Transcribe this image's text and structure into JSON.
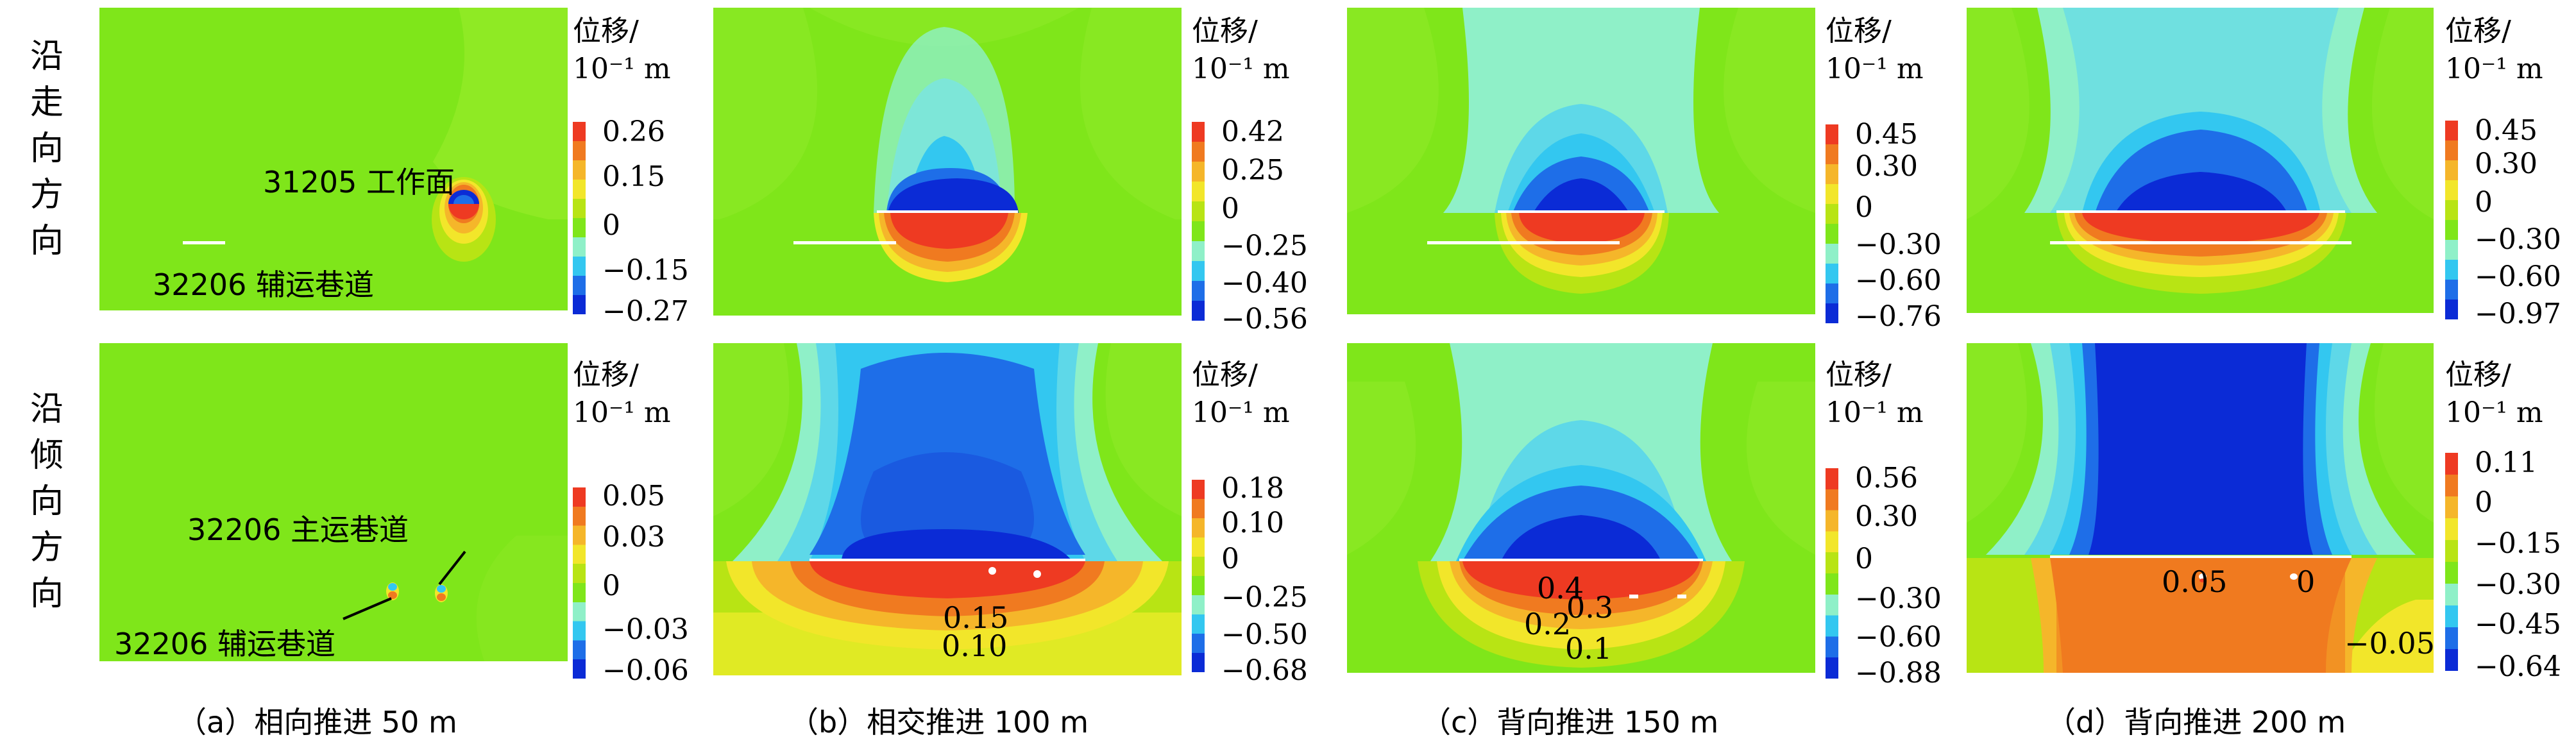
{
  "row_labels": [
    "沿走向方向",
    "沿倾向方向"
  ],
  "captions": [
    "（a）相向推进 50 m",
    "（b）相交推进 100 m",
    "（c）背向推进 150 m",
    "（d）背向推进 200 m"
  ],
  "legend_title": "位移/",
  "legend_unit": "10⁻¹ m",
  "colorscale": [
    "#0b2bd6",
    "#1e6ee8",
    "#33c7f0",
    "#8ff0c8",
    "#7fe61a",
    "#b8e414",
    "#f2e62a",
    "#f5b62a",
    "#f07a20",
    "#ee3a22"
  ],
  "annotations": {
    "a_top_face": "31205 工作面",
    "a_top_road": "32206 辅运巷道",
    "a_bottom_main": "32206 主运巷道",
    "a_bottom_aux": "32206 辅运巷道"
  },
  "chart_data": [
    {
      "type": "heatmap",
      "row": "沿走向方向",
      "panel": "(a)",
      "colorbar_ticks": [
        "0.26",
        "0.15",
        "0",
        "−0.15",
        "−0.27"
      ],
      "contour_labels": []
    },
    {
      "type": "heatmap",
      "row": "沿走向方向",
      "panel": "(b)",
      "colorbar_ticks": [
        "0.42",
        "0.25",
        "0",
        "−0.25",
        "−0.40",
        "−0.56"
      ],
      "contour_labels": []
    },
    {
      "type": "heatmap",
      "row": "沿走向方向",
      "panel": "(c)",
      "colorbar_ticks": [
        "0.45",
        "0.30",
        "0",
        "−0.30",
        "−0.60",
        "−0.76"
      ],
      "contour_labels": []
    },
    {
      "type": "heatmap",
      "row": "沿走向方向",
      "panel": "(d)",
      "colorbar_ticks": [
        "0.45",
        "0.30",
        "0",
        "−0.30",
        "−0.60",
        "−0.97"
      ],
      "contour_labels": []
    },
    {
      "type": "heatmap",
      "row": "沿倾向方向",
      "panel": "(a)",
      "colorbar_ticks": [
        "0.05",
        "0.03",
        "0",
        "−0.03",
        "−0.06"
      ],
      "contour_labels": []
    },
    {
      "type": "heatmap",
      "row": "沿倾向方向",
      "panel": "(b)",
      "colorbar_ticks": [
        "0.18",
        "0.10",
        "0",
        "−0.25",
        "−0.50",
        "−0.68"
      ],
      "contour_labels": [
        "0.15",
        "0.10"
      ]
    },
    {
      "type": "heatmap",
      "row": "沿倾向方向",
      "panel": "(c)",
      "colorbar_ticks": [
        "0.56",
        "0.30",
        "0",
        "−0.30",
        "−0.60",
        "−0.88"
      ],
      "contour_labels": [
        "0.4",
        "0.3",
        "0.2",
        "0.1"
      ]
    },
    {
      "type": "heatmap",
      "row": "沿倾向方向",
      "panel": "(d)",
      "colorbar_ticks": [
        "0.11",
        "0",
        "−0.15",
        "−0.30",
        "−0.45",
        "−0.64"
      ],
      "contour_labels": [
        "0.05",
        "0",
        "−0.05"
      ]
    }
  ]
}
